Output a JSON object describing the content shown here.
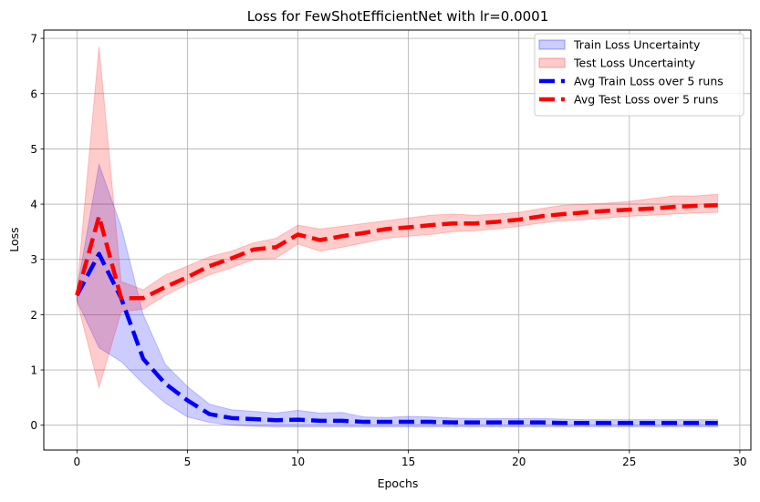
{
  "chart_data": {
    "type": "line",
    "title": "Loss for FewShotEfficientNet with lr=0.0001",
    "xlabel": "Epochs",
    "ylabel": "Loss",
    "xlim": [
      -1.5,
      30.5
    ],
    "ylim": [
      -0.45,
      7.15
    ],
    "x_ticks": [
      0,
      5,
      10,
      15,
      20,
      25,
      30
    ],
    "y_ticks": [
      0,
      1,
      2,
      3,
      4,
      5,
      6,
      7
    ],
    "grid": true,
    "legend_position": "top-right",
    "x": [
      0,
      1,
      2,
      3,
      4,
      5,
      6,
      7,
      8,
      9,
      10,
      11,
      12,
      13,
      14,
      15,
      16,
      17,
      18,
      19,
      20,
      21,
      22,
      23,
      24,
      25,
      26,
      27,
      28,
      29
    ],
    "bands": [
      {
        "name": "Train Loss Uncertainty",
        "color": "#0000ff",
        "opacity": 0.2,
        "upper": [
          2.45,
          4.72,
          3.6,
          2.0,
          1.1,
          0.7,
          0.38,
          0.28,
          0.25,
          0.22,
          0.27,
          0.22,
          0.23,
          0.15,
          0.14,
          0.16,
          0.15,
          0.13,
          0.12,
          0.12,
          0.12,
          0.12,
          0.11,
          0.1,
          0.1,
          0.1,
          0.1,
          0.1,
          0.1,
          0.1
        ],
        "lower": [
          2.25,
          1.4,
          1.15,
          0.75,
          0.4,
          0.15,
          0.05,
          0.0,
          -0.02,
          -0.03,
          -0.03,
          -0.03,
          -0.03,
          -0.03,
          -0.03,
          -0.03,
          -0.03,
          -0.03,
          -0.03,
          -0.03,
          -0.03,
          -0.03,
          -0.03,
          -0.03,
          -0.03,
          -0.03,
          -0.03,
          -0.03,
          -0.03,
          -0.03
        ]
      },
      {
        "name": "Test Loss Uncertainty",
        "color": "#ff0000",
        "opacity": 0.2,
        "upper": [
          2.45,
          6.85,
          2.6,
          2.45,
          2.72,
          2.88,
          3.05,
          3.15,
          3.3,
          3.38,
          3.62,
          3.55,
          3.6,
          3.65,
          3.7,
          3.75,
          3.8,
          3.82,
          3.8,
          3.82,
          3.85,
          3.92,
          3.98,
          4.0,
          4.02,
          4.05,
          4.1,
          4.15,
          4.15,
          4.18
        ],
        "lower": [
          2.25,
          0.68,
          2.05,
          2.1,
          2.35,
          2.55,
          2.72,
          2.85,
          3.0,
          3.02,
          3.28,
          3.15,
          3.22,
          3.3,
          3.38,
          3.42,
          3.45,
          3.5,
          3.52,
          3.55,
          3.6,
          3.66,
          3.7,
          3.72,
          3.75,
          3.78,
          3.8,
          3.82,
          3.84,
          3.85
        ]
      }
    ],
    "series": [
      {
        "name": "Avg Train Loss over 5 runs",
        "color": "#0000ff",
        "style": "dashed",
        "values": [
          2.35,
          3.1,
          2.3,
          1.2,
          0.75,
          0.45,
          0.2,
          0.13,
          0.11,
          0.09,
          0.1,
          0.08,
          0.08,
          0.06,
          0.06,
          0.06,
          0.06,
          0.05,
          0.05,
          0.05,
          0.05,
          0.05,
          0.04,
          0.04,
          0.04,
          0.04,
          0.04,
          0.04,
          0.04,
          0.04
        ]
      },
      {
        "name": "Avg Test Loss over 5 runs",
        "color": "#ff0000",
        "style": "dashed",
        "values": [
          2.35,
          3.78,
          2.3,
          2.3,
          2.5,
          2.68,
          2.88,
          3.02,
          3.18,
          3.22,
          3.45,
          3.35,
          3.42,
          3.48,
          3.55,
          3.58,
          3.62,
          3.65,
          3.65,
          3.68,
          3.72,
          3.78,
          3.82,
          3.85,
          3.88,
          3.9,
          3.92,
          3.95,
          3.97,
          3.98
        ]
      }
    ]
  }
}
